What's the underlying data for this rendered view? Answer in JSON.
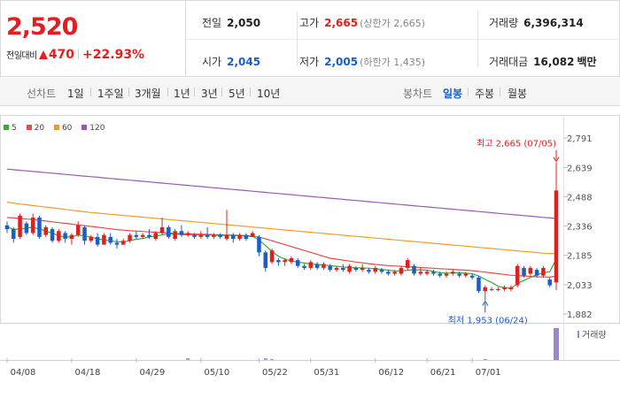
{
  "header": {
    "price": "2,520",
    "change_label": "전일대비",
    "change_amount": "470",
    "change_percent": "+22.93%",
    "prev_close_label": "전일",
    "prev_close": "2,050",
    "open_label": "시가",
    "open": "2,045",
    "high_label": "고가",
    "high": "2,665",
    "upper_limit": "(상한가 2,665)",
    "low_label": "저가",
    "low": "2,005",
    "lower_limit": "(하한가 1,435)",
    "volume_label": "거래량",
    "volume": "6,396,314",
    "amount_label": "거래대금",
    "amount": "16,082",
    "amount_unit": "백만"
  },
  "period_bar": {
    "label": "선차트",
    "items": [
      "1일",
      "1주일",
      "3개월",
      "1년",
      "3년",
      "5년",
      "10년"
    ],
    "candle_label": "봉차트",
    "candle_items": [
      "일봉",
      "주봉",
      "월봉"
    ],
    "active_candle": "일봉"
  },
  "colors": {
    "up": "#e02020",
    "down": "#1a5ec9",
    "ma5": "#3aaa35",
    "ma20": "#e84a4a",
    "ma60": "#f39c2b",
    "ma120": "#9b59b6"
  },
  "chart_data": {
    "type": "candlestick",
    "legend": [
      "5",
      "20",
      "60",
      "120"
    ],
    "y_ticks": [
      "2,791",
      "2,639",
      "2,488",
      "2,336",
      "2,185",
      "2,033",
      "1,882"
    ],
    "ylim": [
      1882,
      2791
    ],
    "x_labels": [
      "04/08",
      "04/18",
      "04/29",
      "05/10",
      "05/22",
      "05/31",
      "06/12",
      "06/21",
      "07/01"
    ],
    "max_annotation": "최고 2,665 (07/05)",
    "min_annotation": "최저 1,953 (06/24)",
    "volume_label": "거래량",
    "candles": [
      [
        2340,
        2360,
        2300,
        2320
      ],
      [
        2320,
        2330,
        2250,
        2270
      ],
      [
        2280,
        2400,
        2270,
        2390
      ],
      [
        2350,
        2360,
        2290,
        2300
      ],
      [
        2300,
        2400,
        2290,
        2380
      ],
      [
        2380,
        2390,
        2270,
        2280
      ],
      [
        2290,
        2340,
        2280,
        2330
      ],
      [
        2320,
        2330,
        2250,
        2260
      ],
      [
        2260,
        2320,
        2250,
        2310
      ],
      [
        2300,
        2310,
        2250,
        2270
      ],
      [
        2270,
        2300,
        2240,
        2290
      ],
      [
        2290,
        2360,
        2280,
        2340
      ],
      [
        2330,
        2340,
        2240,
        2260
      ],
      [
        2260,
        2290,
        2250,
        2280
      ],
      [
        2280,
        2300,
        2230,
        2240
      ],
      [
        2240,
        2300,
        2240,
        2290
      ],
      [
        2280,
        2300,
        2240,
        2250
      ],
      [
        2250,
        2270,
        2220,
        2240
      ],
      [
        2240,
        2270,
        2240,
        2260
      ],
      [
        2260,
        2300,
        2250,
        2290
      ],
      [
        2290,
        2310,
        2270,
        2280
      ],
      [
        2280,
        2300,
        2270,
        2290
      ],
      [
        2290,
        2320,
        2270,
        2280
      ],
      [
        2270,
        2310,
        2260,
        2300
      ],
      [
        2300,
        2380,
        2290,
        2330
      ],
      [
        2330,
        2340,
        2270,
        2280
      ],
      [
        2270,
        2320,
        2260,
        2310
      ],
      [
        2310,
        2340,
        2280,
        2290
      ],
      [
        2290,
        2310,
        2280,
        2300
      ],
      [
        2290,
        2300,
        2270,
        2280
      ],
      [
        2280,
        2310,
        2270,
        2290
      ],
      [
        2290,
        2330,
        2270,
        2280
      ],
      [
        2280,
        2300,
        2270,
        2290
      ],
      [
        2290,
        2300,
        2270,
        2280
      ],
      [
        2270,
        2420,
        2260,
        2290
      ],
      [
        2290,
        2300,
        2250,
        2270
      ],
      [
        2270,
        2300,
        2260,
        2290
      ],
      [
        2290,
        2300,
        2260,
        2270
      ],
      [
        2280,
        2310,
        2280,
        2300
      ],
      [
        2280,
        2290,
        2180,
        2200
      ],
      [
        2200,
        2210,
        2100,
        2120
      ],
      [
        2150,
        2220,
        2140,
        2210
      ],
      [
        2160,
        2170,
        2130,
        2150
      ],
      [
        2150,
        2170,
        2130,
        2160
      ],
      [
        2150,
        2180,
        2140,
        2170
      ],
      [
        2160,
        2170,
        2120,
        2130
      ],
      [
        2130,
        2140,
        2110,
        2120
      ],
      [
        2120,
        2160,
        2110,
        2150
      ],
      [
        2140,
        2150,
        2110,
        2120
      ],
      [
        2120,
        2150,
        2110,
        2140
      ],
      [
        2130,
        2140,
        2100,
        2110
      ],
      [
        2110,
        2130,
        2100,
        2120
      ],
      [
        2120,
        2140,
        2100,
        2110
      ],
      [
        2100,
        2140,
        2090,
        2130
      ],
      [
        2120,
        2130,
        2100,
        2110
      ],
      [
        2110,
        2140,
        2100,
        2120
      ],
      [
        2110,
        2120,
        2090,
        2100
      ],
      [
        2100,
        2130,
        2090,
        2120
      ],
      [
        2110,
        2120,
        2090,
        2100
      ],
      [
        2100,
        2110,
        2080,
        2090
      ],
      [
        2090,
        2110,
        2080,
        2100
      ],
      [
        2090,
        2130,
        2080,
        2120
      ],
      [
        2120,
        2170,
        2110,
        2160
      ],
      [
        2130,
        2140,
        2080,
        2090
      ],
      [
        2090,
        2120,
        2080,
        2100
      ],
      [
        2090,
        2110,
        2080,
        2100
      ],
      [
        2100,
        2110,
        2080,
        2090
      ],
      [
        2090,
        2100,
        2070,
        2080
      ],
      [
        2080,
        2100,
        2070,
        2090
      ],
      [
        2090,
        2110,
        2080,
        2100
      ],
      [
        2090,
        2100,
        2070,
        2080
      ],
      [
        2080,
        2100,
        2070,
        2090
      ],
      [
        2080,
        2090,
        2060,
        2070
      ],
      [
        2070,
        2080,
        1990,
        2000
      ],
      [
        2000,
        2030,
        1953,
        2020
      ],
      [
        2010,
        2020,
        2000,
        2010
      ],
      [
        2010,
        2020,
        2000,
        2010
      ],
      [
        2010,
        2030,
        2000,
        2020
      ],
      [
        2010,
        2030,
        2000,
        2020
      ],
      [
        2030,
        2140,
        2020,
        2130
      ],
      [
        2120,
        2130,
        2070,
        2080
      ],
      [
        2090,
        2130,
        2080,
        2120
      ],
      [
        2110,
        2120,
        2070,
        2080
      ],
      [
        2080,
        2130,
        2070,
        2120
      ],
      [
        2060,
        2070,
        2020,
        2030
      ],
      [
        2045,
        2665,
        2005,
        2520
      ]
    ],
    "ma5": [
      2330,
      2320,
      2320,
      2325,
      2330,
      2320,
      2310,
      2300,
      2285,
      2280,
      2280,
      2290,
      2285,
      2280,
      2270,
      2265,
      2260,
      2255,
      2255,
      2260,
      2268,
      2272,
      2280,
      2285,
      2290,
      2295,
      2295,
      2292,
      2290,
      2290,
      2290,
      2290,
      2289,
      2287,
      2288,
      2288,
      2286,
      2285,
      2282,
      2265,
      2235,
      2205,
      2180,
      2165,
      2155,
      2150,
      2145,
      2140,
      2138,
      2135,
      2132,
      2128,
      2125,
      2122,
      2120,
      2120,
      2118,
      2115,
      2112,
      2108,
      2105,
      2104,
      2108,
      2110,
      2110,
      2108,
      2102,
      2095,
      2093,
      2094,
      2095,
      2092,
      2090,
      2078,
      2060,
      2045,
      2025,
      2018,
      2013,
      2040,
      2055,
      2070,
      2085,
      2095,
      2100,
      2165
    ],
    "ma20": [
      2380,
      2378,
      2375,
      2372,
      2370,
      2366,
      2362,
      2358,
      2354,
      2350,
      2346,
      2342,
      2338,
      2334,
      2330,
      2326,
      2322,
      2318,
      2315,
      2312,
      2310,
      2308,
      2306,
      2304,
      2302,
      2300,
      2298,
      2297,
      2296,
      2295,
      2294,
      2293,
      2292,
      2291,
      2290,
      2289,
      2288,
      2287,
      2285,
      2280,
      2270,
      2260,
      2250,
      2240,
      2230,
      2220,
      2210,
      2200,
      2190,
      2180,
      2170,
      2165,
      2160,
      2155,
      2150,
      2146,
      2142,
      2138,
      2135,
      2132,
      2130,
      2128,
      2126,
      2124,
      2122,
      2120,
      2118,
      2116,
      2114,
      2112,
      2110,
      2108,
      2106,
      2102,
      2098,
      2094,
      2090,
      2086,
      2082,
      2080,
      2078,
      2076,
      2074,
      2073,
      2072,
      2078
    ],
    "ma60": [
      2460,
      2455,
      2450,
      2446,
      2442,
      2438,
      2434,
      2430,
      2426,
      2422,
      2418,
      2414,
      2410,
      2406,
      2403,
      2400,
      2397,
      2394,
      2391,
      2388,
      2385,
      2382,
      2379,
      2376,
      2373,
      2370,
      2367,
      2364,
      2361,
      2358,
      2355,
      2352,
      2349,
      2346,
      2343,
      2340,
      2337,
      2334,
      2331,
      2328,
      2325,
      2322,
      2319,
      2316,
      2313,
      2310,
      2307,
      2304,
      2301,
      2298,
      2295,
      2292,
      2289,
      2286,
      2283,
      2280,
      2277,
      2274,
      2271,
      2268,
      2265,
      2262,
      2259,
      2256,
      2253,
      2250,
      2247,
      2244,
      2241,
      2238,
      2235,
      2232,
      2229,
      2226,
      2223,
      2220,
      2217,
      2214,
      2211,
      2208,
      2205,
      2202,
      2199,
      2196,
      2194,
      2195
    ],
    "ma120": [
      2630,
      2627,
      2624,
      2621,
      2618,
      2615,
      2612,
      2609,
      2606,
      2603,
      2600,
      2597,
      2594,
      2591,
      2588,
      2585,
      2582,
      2579,
      2576,
      2573,
      2570,
      2567,
      2564,
      2561,
      2558,
      2555,
      2552,
      2549,
      2546,
      2543,
      2540,
      2537,
      2534,
      2531,
      2528,
      2525,
      2522,
      2519,
      2516,
      2513,
      2510,
      2507,
      2504,
      2501,
      2498,
      2495,
      2492,
      2489,
      2486,
      2483,
      2480,
      2477,
      2474,
      2471,
      2468,
      2465,
      2462,
      2459,
      2456,
      2453,
      2450,
      2447,
      2444,
      2441,
      2438,
      2435,
      2432,
      2429,
      2426,
      2423,
      2420,
      2417,
      2414,
      2411,
      2408,
      2405,
      2402,
      2399,
      2396,
      2393,
      2390,
      2387,
      2384,
      2381,
      2378,
      2375
    ]
  }
}
